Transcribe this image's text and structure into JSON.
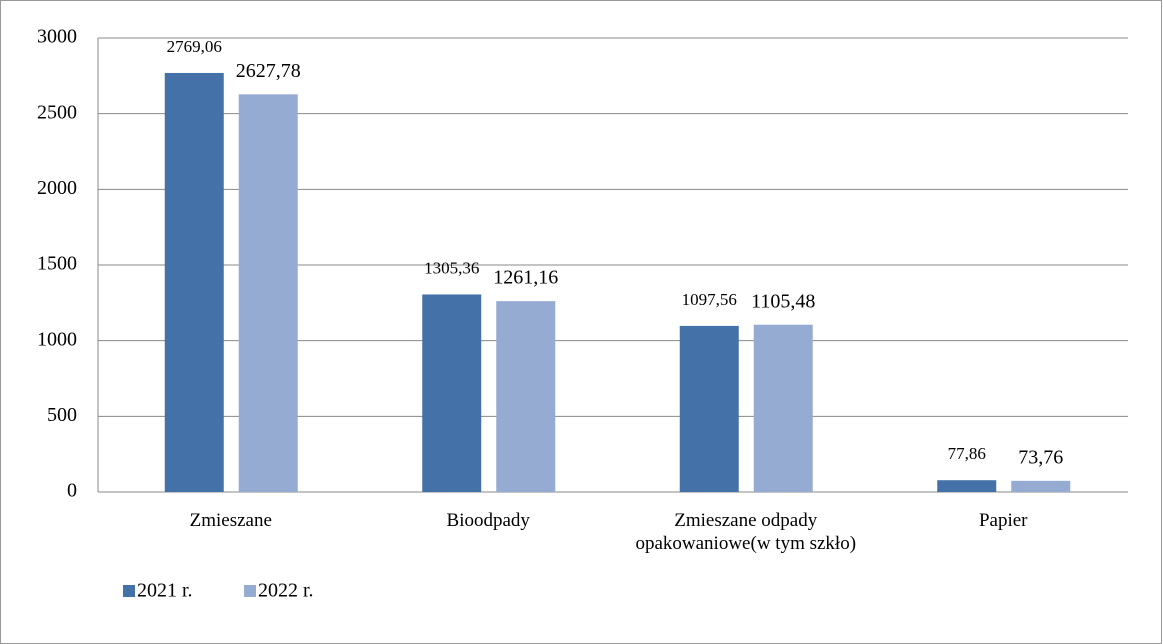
{
  "chart_data": {
    "type": "bar",
    "categories": [
      "Zmieszane",
      "Bioodpady",
      "Zmieszane odpady opakowaniowe(w tym szkło)",
      "Papier"
    ],
    "series": [
      {
        "name": "2021 r.",
        "color": "#4472a8",
        "values": [
          2769.06,
          1305.36,
          1097.56,
          77.86
        ],
        "value_labels": [
          "2769,06",
          "1305,36",
          "1097,56",
          "77,86"
        ]
      },
      {
        "name": "2022 r.",
        "color": "#95abd2",
        "values": [
          2627.78,
          1261.16,
          1105.48,
          73.76
        ],
        "value_labels": [
          "2627,78",
          "1261,16",
          "1105,48",
          "73,76"
        ]
      }
    ],
    "ylim": [
      0,
      3000
    ],
    "yticks": [
      0,
      500,
      1000,
      1500,
      2000,
      2500,
      3000
    ],
    "grid": true
  }
}
